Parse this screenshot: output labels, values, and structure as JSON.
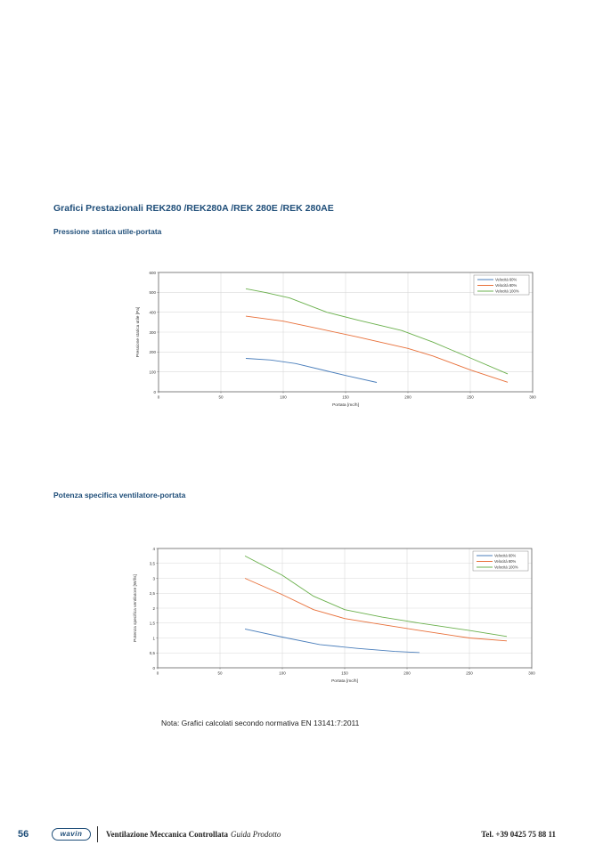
{
  "page": {
    "title": "Grafici Prestazionali REK280 /REK280A /REK 280E /REK 280AE",
    "subtitle1": "Pressione statica utile-portata",
    "subtitle2": "Potenza specifica ventilatore-portata",
    "note": "Nota: Grafici calcolati secondo normativa EN 13141:7:2011"
  },
  "footer": {
    "page_number": "56",
    "logo_text": "wavin",
    "title": "Ventilazione Meccanica Controllata",
    "subtitle": "Guida Prodotto",
    "phone": "Tel. +39 0425 75 88 11"
  },
  "colors": {
    "v60": "#4a7ebb",
    "v80": "#e8703a",
    "v100": "#6ab04c",
    "heading": "#1f4e79"
  },
  "chart_data": [
    {
      "type": "line",
      "xlabel": "Portata [mc/h]",
      "ylabel": "Pressione statica utile [Pa]",
      "xlim": [
        0,
        300
      ],
      "ylim": [
        0,
        600
      ],
      "xticks": [
        0,
        50,
        100,
        150,
        200,
        250,
        300
      ],
      "yticks": [
        0,
        100,
        200,
        300,
        400,
        500,
        600
      ],
      "grid": true,
      "legend_position": "top-right",
      "series": [
        {
          "name": "Velocità 60%",
          "color": "#4a7ebb",
          "x": [
            70,
            90,
            110,
            130,
            150,
            175
          ],
          "y": [
            168,
            160,
            142,
            112,
            82,
            47
          ]
        },
        {
          "name": "Velocità 80%",
          "color": "#e8703a",
          "x": [
            70,
            100,
            130,
            160,
            200,
            220,
            250,
            280
          ],
          "y": [
            380,
            355,
            315,
            275,
            218,
            180,
            110,
            48
          ]
        },
        {
          "name": "Velocità 100%",
          "color": "#6ab04c",
          "x": [
            70,
            85,
            105,
            135,
            160,
            195,
            220,
            250,
            280
          ],
          "y": [
            518,
            500,
            472,
            400,
            360,
            308,
            250,
            170,
            90
          ]
        }
      ]
    },
    {
      "type": "line",
      "xlabel": "Portata [mc/h]",
      "ylabel": "Potenza specifica ventilatore [W/l/s]",
      "xlim": [
        0,
        300
      ],
      "ylim": [
        0,
        4
      ],
      "xticks": [
        0,
        50,
        100,
        150,
        200,
        250,
        300
      ],
      "yticks": [
        0,
        0.5,
        1,
        1.5,
        2,
        2.5,
        3,
        3.5,
        4
      ],
      "ytick_labels": [
        "0",
        "0,5",
        "1",
        "1,5",
        "2",
        "2,5",
        "3",
        "3,5",
        "4"
      ],
      "grid": true,
      "legend_position": "top-right",
      "series": [
        {
          "name": "Velocità 60%",
          "color": "#4a7ebb",
          "x": [
            70,
            100,
            130,
            160,
            190,
            210
          ],
          "y": [
            1.3,
            1.03,
            0.78,
            0.65,
            0.55,
            0.51
          ]
        },
        {
          "name": "Velocità 80%",
          "color": "#e8703a",
          "x": [
            70,
            100,
            125,
            150,
            180,
            210,
            250,
            280
          ],
          "y": [
            3.0,
            2.45,
            1.95,
            1.65,
            1.45,
            1.25,
            1.0,
            0.9
          ]
        },
        {
          "name": "Velocità 100%",
          "color": "#6ab04c",
          "x": [
            70,
            100,
            125,
            150,
            180,
            210,
            250,
            280
          ],
          "y": [
            3.75,
            3.1,
            2.4,
            1.95,
            1.7,
            1.5,
            1.25,
            1.05
          ]
        }
      ]
    }
  ]
}
